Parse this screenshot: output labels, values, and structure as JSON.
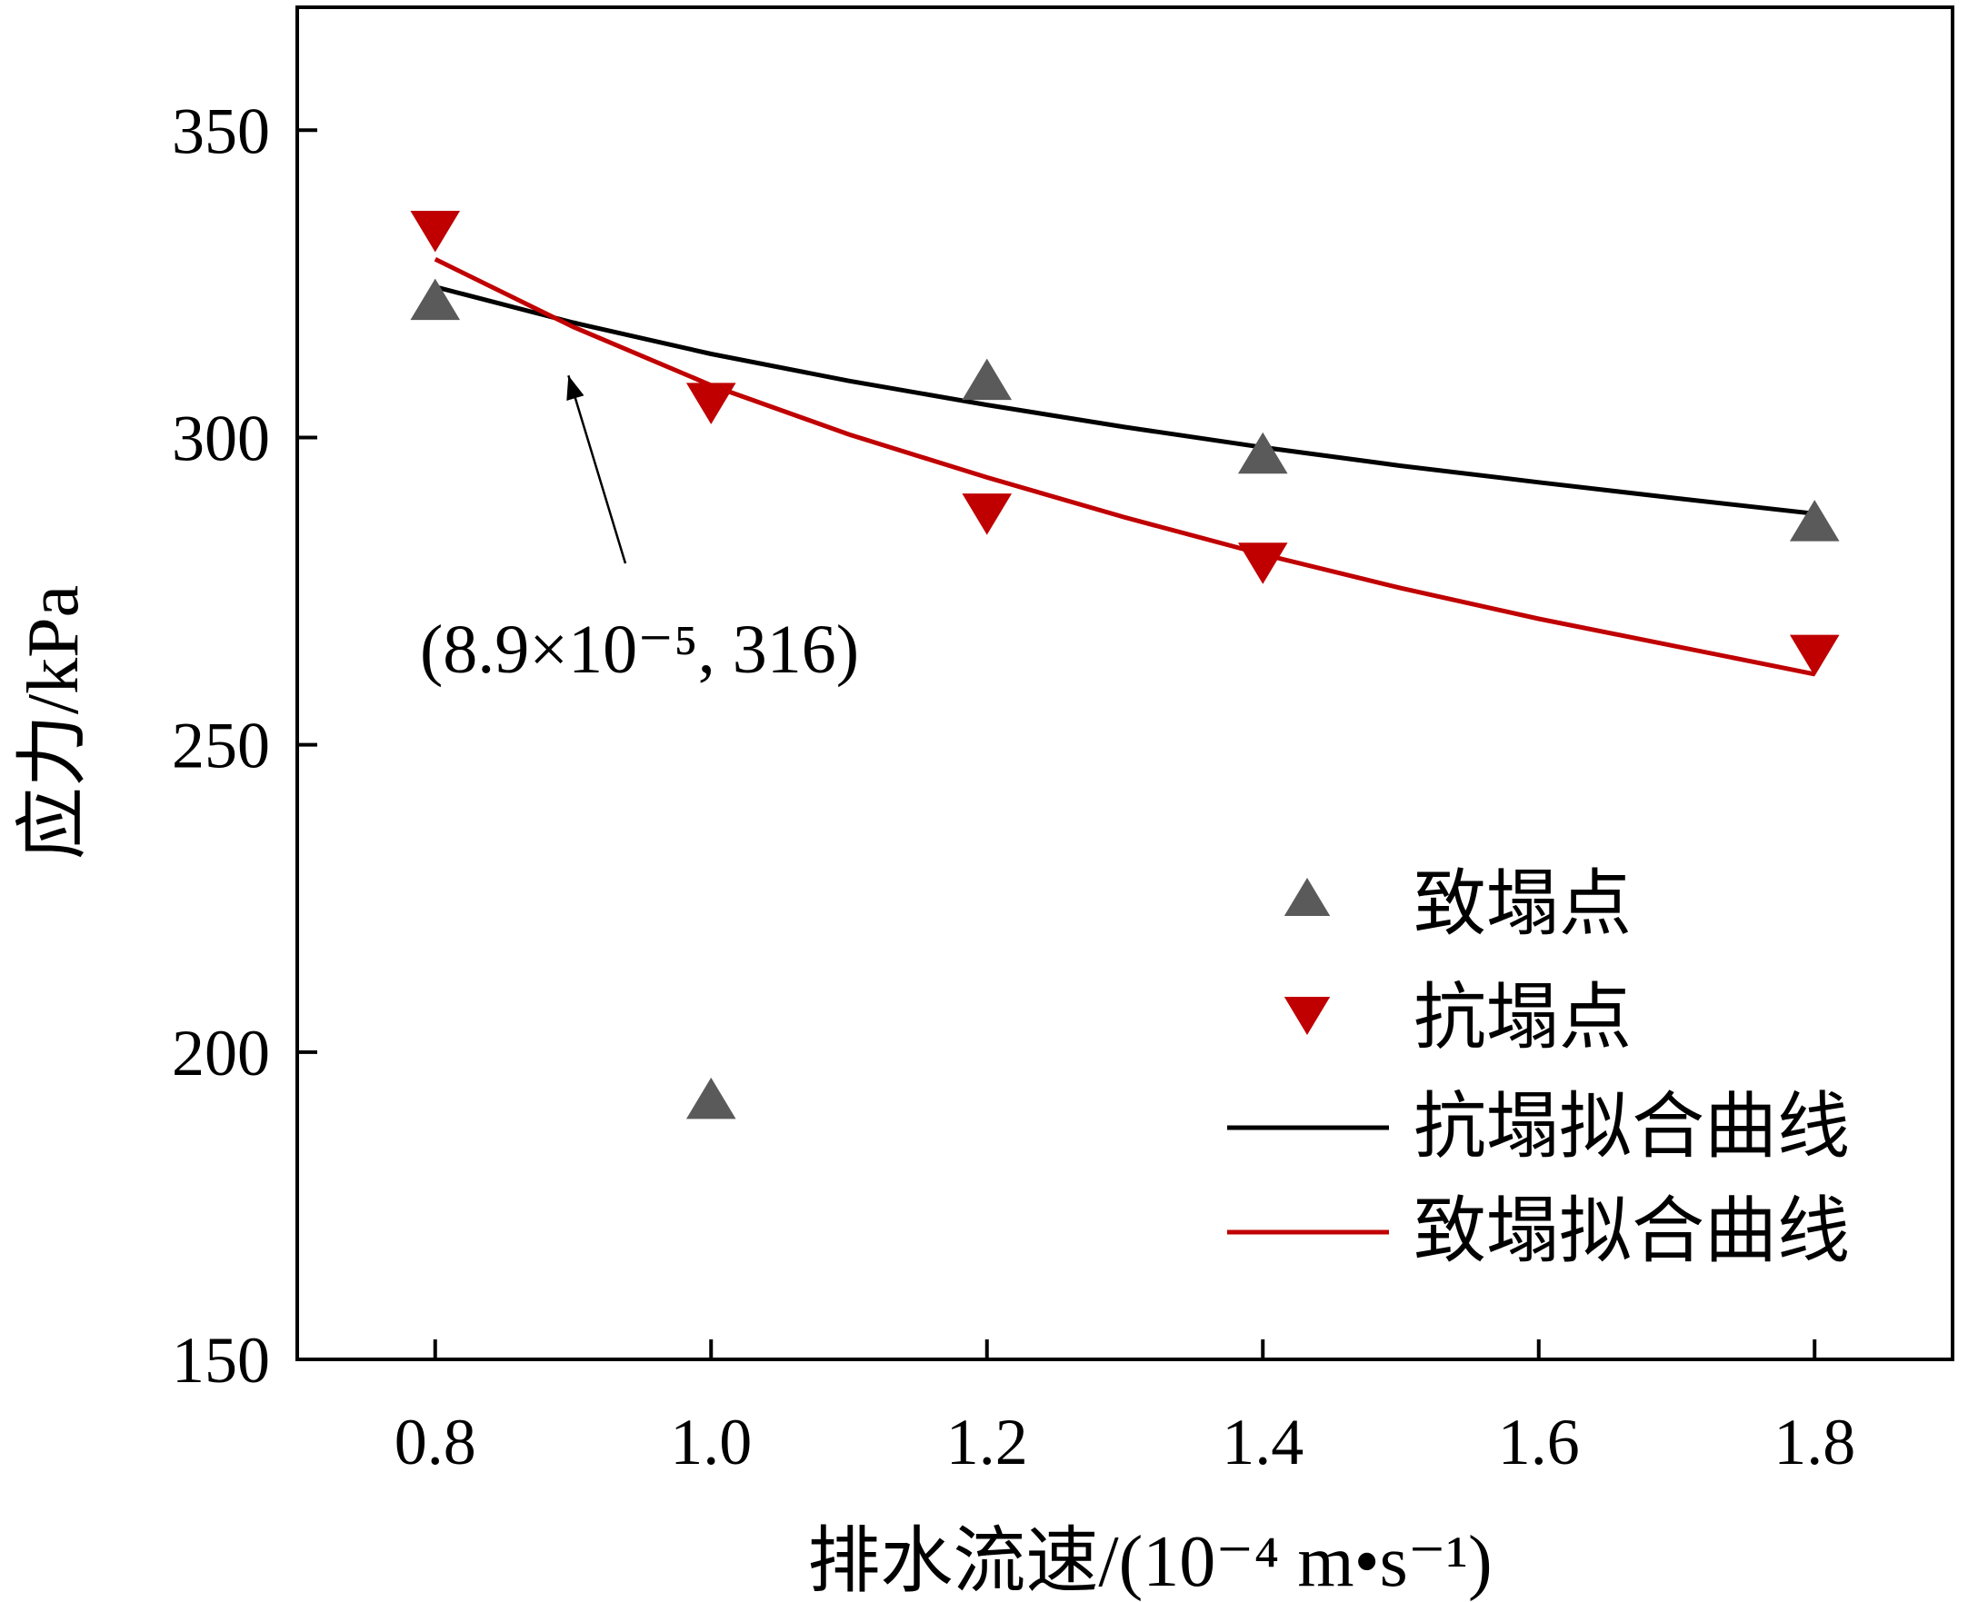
{
  "chart_data": {
    "type": "scatter",
    "xlabel": "排水流速/(10⁻⁴ m•s⁻¹)",
    "ylabel": "应力/kPa",
    "xlim": [
      0.7,
      1.9
    ],
    "ylim": [
      150,
      370
    ],
    "x_ticks": [
      0.8,
      1.0,
      1.2,
      1.4,
      1.6,
      1.8
    ],
    "y_ticks": [
      150,
      200,
      250,
      300,
      350
    ],
    "x_tick_labels": [
      "0.8",
      "1.0",
      "1.2",
      "1.4",
      "1.6",
      "1.8"
    ],
    "y_tick_labels": [
      "150",
      "200",
      "250",
      "300",
      "350"
    ],
    "grid": false,
    "legend_position": "bottom-right",
    "series": [
      {
        "name": "致塌点",
        "kind": "scatter",
        "marker": "triangle-up",
        "color": "#5a5a5a",
        "x": [
          0.8,
          1.0,
          1.2,
          1.4,
          1.8
        ],
        "y": [
          322,
          192,
          309,
          297,
          286
        ]
      },
      {
        "name": "抗塌点",
        "kind": "scatter",
        "marker": "triangle-down",
        "color": "#c00000",
        "x": [
          0.8,
          1.0,
          1.2,
          1.4,
          1.8
        ],
        "y": [
          334,
          306,
          288,
          280,
          265
        ]
      },
      {
        "name": "抗塌拟合曲线",
        "kind": "line",
        "color": "#000000",
        "x": [
          0.8,
          0.9,
          1.0,
          1.1,
          1.2,
          1.3,
          1.4,
          1.5,
          1.6,
          1.7,
          1.8
        ],
        "y": [
          324.5,
          318.7,
          313.6,
          309.2,
          305.3,
          301.7,
          298.4,
          295.4,
          292.7,
          290.1,
          287.6
        ]
      },
      {
        "name": "致塌拟合曲线",
        "kind": "line",
        "color": "#c00000",
        "x": [
          0.8,
          0.9,
          1.0,
          1.1,
          1.2,
          1.3,
          1.4,
          1.5,
          1.6,
          1.7,
          1.8
        ],
        "y": [
          329.0,
          318.0,
          308.5,
          300.5,
          293.5,
          287.0,
          281.0,
          275.5,
          270.5,
          266.0,
          261.5
        ]
      }
    ],
    "annotations": [
      {
        "text": "(8.9×10⁻⁵, 316)",
        "point": [
          0.89,
          316
        ]
      }
    ]
  }
}
